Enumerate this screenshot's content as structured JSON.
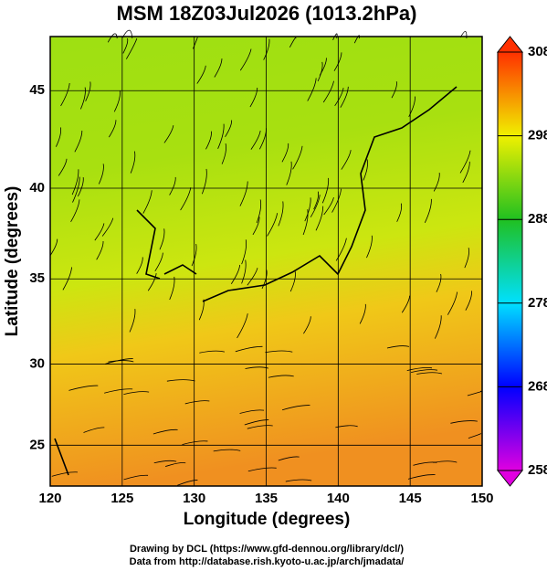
{
  "title": "MSM 18Z03Jul2026 (1013.2hPa)",
  "map": {
    "projection": "mercator",
    "xlabel": "Longitude (degrees)",
    "ylabel": "Latitude  (degrees)",
    "xlim": [
      120,
      150
    ],
    "ylim": [
      22.4,
      47.6
    ],
    "xticks": [
      120,
      125,
      130,
      135,
      140,
      145,
      150
    ],
    "yticks": [
      25,
      30,
      35,
      40,
      45
    ],
    "grid": true
  },
  "colorbar": {
    "lim": [
      258,
      308
    ],
    "ticks": [
      258,
      268,
      278,
      288,
      298,
      308
    ],
    "colors": [
      "#e000e0",
      "#0000ff",
      "#00e0ff",
      "#20c020",
      "#f0f000",
      "#ff3000"
    ]
  },
  "footer": [
    "Drawing by DCL (https://www.gfd-dennou.org/library/dcl/)",
    "Data from http://database.rish.kyoto-u.ac.jp/arch/jmadata/"
  ]
}
